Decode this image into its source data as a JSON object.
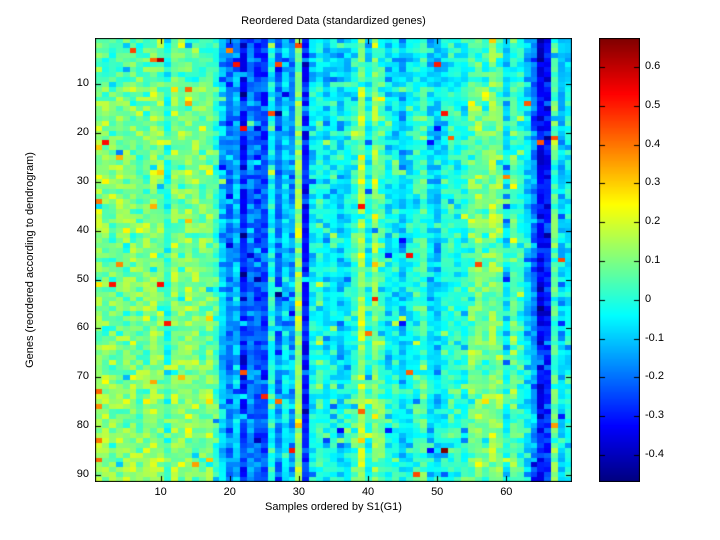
{
  "chart_data": {
    "type": "heatmap",
    "title": "Reordered Data (standardized genes)",
    "xlabel": "Samples ordered by S1(G1)",
    "ylabel": "Genes (reordered according to dendrogram)",
    "n_rows": 91,
    "n_cols": 69,
    "x_ticks": [
      10,
      20,
      30,
      40,
      50,
      60
    ],
    "y_ticks": [
      10,
      20,
      30,
      40,
      50,
      60,
      70,
      80,
      90
    ],
    "colormap": "jet",
    "grid": false,
    "value_range": [
      -0.47,
      0.675
    ],
    "colorbar_ticks": [
      "0.6",
      "0.5",
      "0.4",
      "0.3",
      "0.2",
      "0.1",
      "0",
      "-0.1",
      "-0.2",
      "-0.3",
      "-0.4"
    ],
    "colorbar_tick_values": [
      0.6,
      0.5,
      0.4,
      0.3,
      0.2,
      0.1,
      0,
      -0.1,
      -0.2,
      -0.3,
      -0.4
    ],
    "column_base": [
      0.12,
      0.1,
      0.08,
      0.1,
      0.09,
      0.11,
      0.08,
      0.1,
      0.12,
      0.1,
      0.0,
      0.11,
      0.09,
      0.12,
      0.1,
      0.08,
      0.1,
      0.04,
      -0.1,
      -0.2,
      -0.12,
      -0.3,
      -0.18,
      -0.22,
      -0.25,
      -0.02,
      -0.2,
      -0.08,
      -0.15,
      0.12,
      -0.3,
      -0.05,
      0.0,
      -0.06,
      -0.03,
      -0.08,
      -0.04,
      0.02,
      0.15,
      -0.02,
      0.1,
      0.03,
      -0.06,
      -0.02,
      -0.1,
      -0.05,
      0.0,
      0.04,
      -0.08,
      -0.1,
      -0.03,
      0.02,
      -0.02,
      0.0,
      0.08,
      0.1,
      0.06,
      0.12,
      0.08,
      -0.05,
      0.06,
      0.0,
      -0.08,
      -0.18,
      -0.33,
      -0.3,
      0.06,
      -0.1,
      -0.04
    ],
    "row_bands": [
      {
        "from": 1,
        "to": 9,
        "delta": -0.03
      },
      {
        "from": 70,
        "to": 91,
        "delta": 0.02
      }
    ],
    "noise_sd": 0.05,
    "speckle": {
      "p_orange": 0.004,
      "orange_value": 0.38,
      "p_yellow": 0.02,
      "yellow_delta": 0.17,
      "p_blue": 0.02,
      "blue_delta": -0.17
    },
    "outliers": [
      {
        "row": 5,
        "col": 9,
        "value": 0.42
      },
      {
        "row": 5,
        "col": 10,
        "value": 0.62
      },
      {
        "row": 2,
        "col": 30,
        "value": 0.45
      },
      {
        "row": 1,
        "col": 58,
        "value": 0.3
      },
      {
        "row": 34,
        "col": 1,
        "value": 0.4
      },
      {
        "row": 47,
        "col": 4,
        "value": 0.38
      },
      {
        "row": 47,
        "col": 56,
        "value": 0.45
      },
      {
        "row": 61,
        "col": 40,
        "value": 0.4
      },
      {
        "row": 73,
        "col": 1,
        "value": 0.42
      },
      {
        "row": 76,
        "col": 1,
        "value": 0.38
      },
      {
        "row": 83,
        "col": 1,
        "value": 0.4
      },
      {
        "row": 87,
        "col": 1,
        "value": 0.42
      },
      {
        "row": 85,
        "col": 51,
        "value": 0.675
      }
    ],
    "seed": 1337
  }
}
